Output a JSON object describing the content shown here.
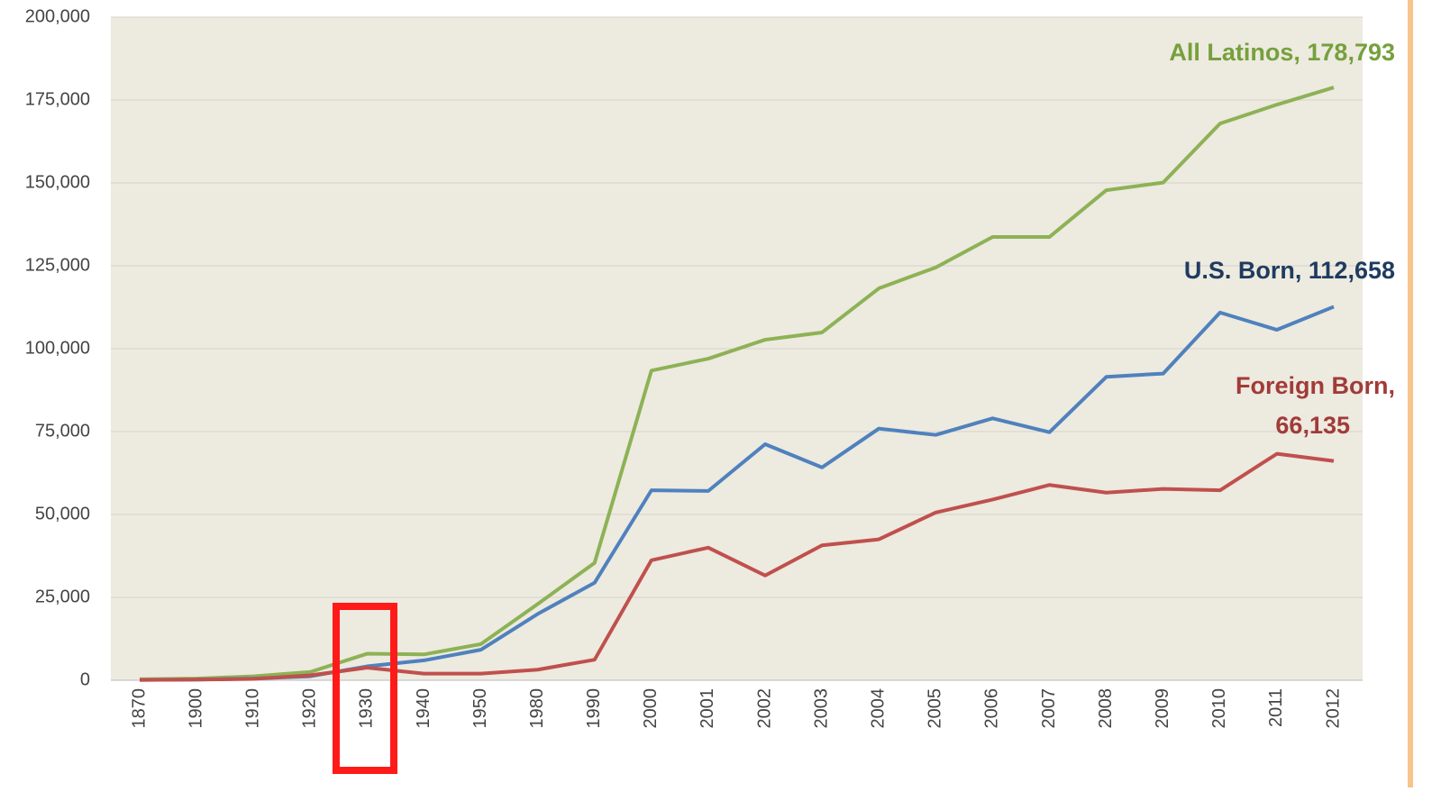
{
  "chart_data": {
    "type": "line",
    "categories": [
      "1870",
      "1900",
      "1910",
      "1920",
      "1930",
      "1940",
      "1950",
      "1980",
      "1990",
      "2000",
      "2001",
      "2002",
      "2003",
      "2004",
      "2005",
      "2006",
      "2007",
      "2008",
      "2009",
      "2010",
      "2011",
      "2012"
    ],
    "series": [
      {
        "name": "All Latinos",
        "color": "#8db255",
        "values": [
          300,
          500,
          1200,
          2500,
          8000,
          7800,
          10900,
          23000,
          35400,
          93400,
          97000,
          102700,
          104900,
          118200,
          124500,
          133700,
          133700,
          147800,
          150100,
          167900,
          173600,
          178793
        ]
      },
      {
        "name": "U.S. Born",
        "color": "#4f81bd",
        "values": [
          100,
          200,
          500,
          1200,
          4200,
          6000,
          9200,
          20000,
          29400,
          57300,
          57100,
          71200,
          64200,
          75900,
          74000,
          79000,
          74800,
          91500,
          92500,
          110900,
          105700,
          112658
        ]
      },
      {
        "name": "Foreign Born",
        "color": "#c0504d",
        "values": [
          100,
          200,
          400,
          1500,
          3800,
          2000,
          2000,
          3200,
          6200,
          36200,
          40000,
          31600,
          40700,
          42500,
          50600,
          54500,
          58900,
          56600,
          57700,
          57300,
          68300,
          66135
        ]
      }
    ],
    "annotations": [
      {
        "lines": [
          "All Latinos, 178,793"
        ],
        "color": "#76a03c"
      },
      {
        "lines": [
          "U.S. Born, 112,658"
        ],
        "color": "#1f3b5f"
      },
      {
        "lines": [
          "Foreign Born,",
          "66,135"
        ],
        "color": "#a13b38"
      }
    ],
    "ylim": [
      0,
      200000
    ],
    "yticks": [
      0,
      {
        "value": 25000,
        "label": "25,000"
      },
      {
        "value": 50000,
        "label": "50,000"
      },
      {
        "value": 75000,
        "label": "75,000"
      },
      {
        "value": 100000,
        "label": "100,000"
      },
      {
        "value": 125000,
        "label": "125,000"
      },
      {
        "value": 150000,
        "label": "150,000"
      },
      {
        "value": 175000,
        "label": "175,000"
      },
      {
        "value": 200000,
        "label": "200,000"
      }
    ],
    "grid": true
  }
}
